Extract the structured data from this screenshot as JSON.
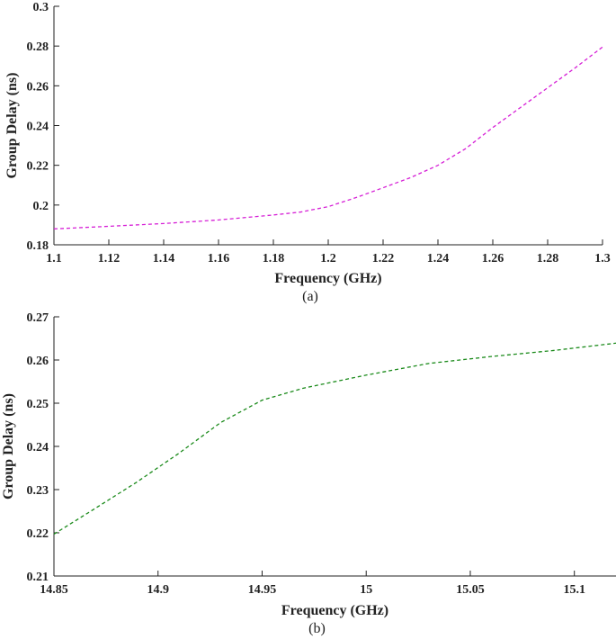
{
  "chart_data": [
    {
      "type": "line",
      "caption": "(a)",
      "xlabel": "Frequency (GHz)",
      "ylabel": "Group Delay (ns)",
      "xlim": [
        1.1,
        1.3
      ],
      "ylim": [
        0.18,
        0.3
      ],
      "xticks": [
        "1.1",
        "1.12",
        "1.14",
        "1.16",
        "1.18",
        "1.2",
        "1.22",
        "1.24",
        "1.26",
        "1.28",
        "1.3"
      ],
      "yticks": [
        "0.18",
        "0.2",
        "0.22",
        "0.24",
        "0.26",
        "0.28",
        "0.3"
      ],
      "line_style": "dashed",
      "color": "#d61fd6",
      "series": [
        {
          "x": [
            1.1,
            1.12,
            1.14,
            1.16,
            1.18,
            1.19,
            1.2,
            1.21,
            1.22,
            1.23,
            1.24,
            1.25,
            1.26,
            1.27,
            1.28,
            1.29,
            1.3
          ],
          "values": [
            0.188,
            0.1893,
            0.1907,
            0.1925,
            0.195,
            0.1965,
            0.1992,
            0.2037,
            0.2087,
            0.2138,
            0.22,
            0.2283,
            0.239,
            0.249,
            0.259,
            0.269,
            0.2795
          ]
        }
      ]
    },
    {
      "type": "line",
      "caption": "(b)",
      "xlabel": "Frequency (GHz)",
      "ylabel": "Group Delay (ns)",
      "xlim": [
        14.85,
        15.12
      ],
      "ylim": [
        0.21,
        0.27
      ],
      "xticks": [
        "14.85",
        "14.9",
        "14.95",
        "15",
        "15.05",
        "15.1"
      ],
      "yticks": [
        "0.21",
        "0.22",
        "0.23",
        "0.24",
        "0.25",
        "0.26",
        "0.27"
      ],
      "line_style": "dashed",
      "color": "#1a8a1a",
      "series": [
        {
          "x": [
            14.85,
            14.87,
            14.89,
            14.91,
            14.93,
            14.95,
            14.97,
            15.0,
            15.03,
            15.06,
            15.09,
            15.12
          ],
          "values": [
            0.2197,
            0.2257,
            0.2318,
            0.2384,
            0.2455,
            0.2507,
            0.2535,
            0.2565,
            0.2592,
            0.2608,
            0.2622,
            0.2639
          ]
        }
      ]
    }
  ]
}
